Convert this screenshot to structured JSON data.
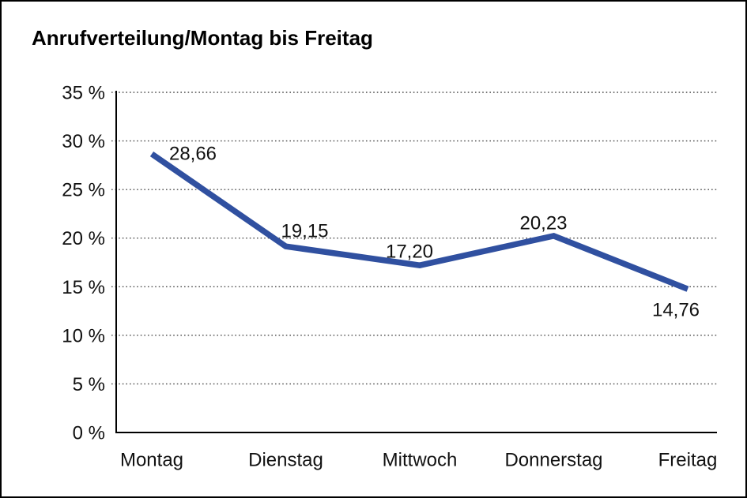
{
  "window": {
    "background_color": "#ffffff",
    "frame_color": "#000000"
  },
  "chart_data": {
    "type": "line",
    "title": "Anrufverteilung/Montag bis Freitag",
    "categories": [
      "Montag",
      "Dienstag",
      "Mittwoch",
      "Donnerstag",
      "Freitag"
    ],
    "series": [
      {
        "name": "Anrufverteilung",
        "values": [
          28.66,
          19.15,
          17.2,
          20.23,
          14.76
        ]
      }
    ],
    "point_labels": [
      "28,66",
      "19,15",
      "17,20",
      "20,23",
      "14,76"
    ],
    "xlabel": "",
    "ylabel": "",
    "ylim": [
      0,
      35
    ],
    "y_step": 5,
    "y_tick_labels": [
      "0 %",
      "5 %",
      "10 %",
      "15 %",
      "20 %",
      "25 %",
      "30 %",
      "35 %"
    ],
    "grid": "horizontal-dotted",
    "legend_position": "none",
    "line_color": "#3050A0",
    "axis_color": "#000000",
    "grid_color": "#4a4a4a",
    "text_color": "#111111"
  }
}
